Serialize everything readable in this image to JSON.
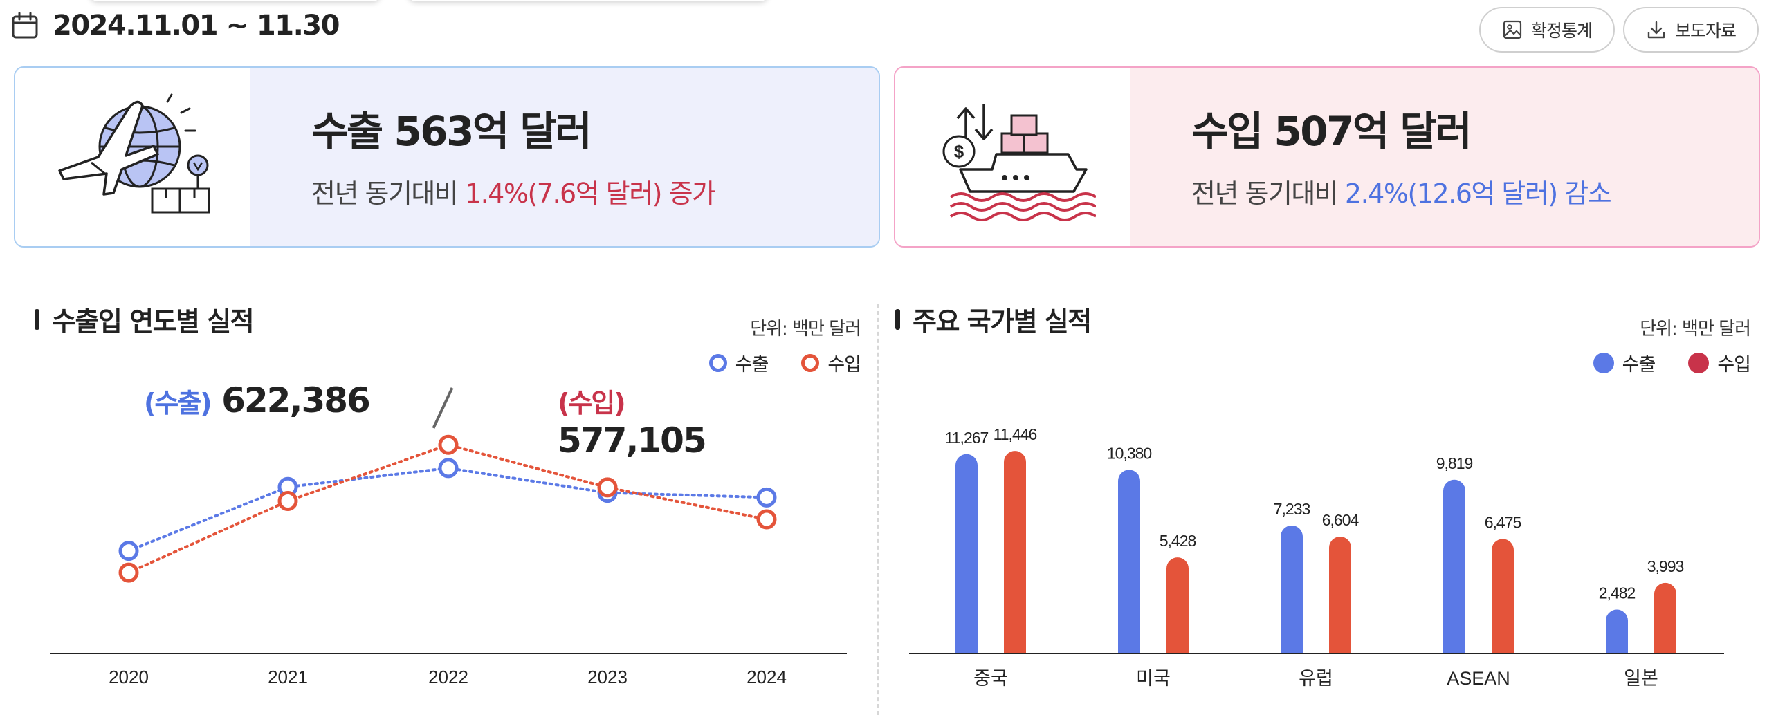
{
  "date_range": "2024.11.01 ~ 11.30",
  "buttons": {
    "confirmed_stats": "확정통계",
    "press_release": "보도자료"
  },
  "export_card": {
    "headline": "수출 563억 달러",
    "sub_prefix": "전년 동기대비 ",
    "sub_change": "1.4%(7.6억 달러) 증가"
  },
  "import_card": {
    "headline": "수입 507억 달러",
    "sub_prefix": "전년 동기대비 ",
    "sub_change": "2.4%(12.6억 달러) 감소"
  },
  "yearly_section": {
    "title": "수출입 연도별 실적",
    "unit": "단위: 백만 달러",
    "legend_export": "수출",
    "legend_import": "수입",
    "total_export_label": "(수출)",
    "total_export_value": "622,386",
    "total_import_label": "(수입)",
    "total_import_value": "577,105"
  },
  "country_section": {
    "title": "주요 국가별 실적",
    "unit": "단위: 백만 달러",
    "legend_export": "수출",
    "legend_import": "수입"
  },
  "colors": {
    "export": "#5b79e6",
    "import": "#e4543a",
    "inc_text": "#c8334a",
    "dec_text": "#4e72e0"
  },
  "chart_data": [
    {
      "type": "line",
      "title": "수출입 연도별 실적",
      "x": [
        "2020",
        "2021",
        "2022",
        "2023",
        "2024"
      ],
      "series": [
        {
          "name": "수출",
          "values": [
            512000,
            644000,
            683000,
            632000,
            622386
          ]
        },
        {
          "name": "수입",
          "values": [
            467000,
            615000,
            731000,
            643000,
            577105
          ]
        }
      ],
      "ylim": [
        300000,
        850000
      ],
      "grid": false,
      "legend": "top-right"
    },
    {
      "type": "bar",
      "title": "주요 국가별 실적",
      "categories": [
        "중국",
        "미국",
        "유럽",
        "ASEAN",
        "일본"
      ],
      "series": [
        {
          "name": "수출",
          "values": [
            11267,
            10380,
            7233,
            9819,
            2482
          ],
          "labels": [
            "11,267",
            "10,380",
            "7,233",
            "9,819",
            "2,482"
          ]
        },
        {
          "name": "수입",
          "values": [
            11446,
            5428,
            6604,
            6475,
            3993
          ],
          "labels": [
            "11,446",
            "5,428",
            "6,604",
            "6,475",
            "3,993"
          ]
        }
      ],
      "ylim": [
        0,
        12000
      ],
      "legend": "top-right"
    }
  ]
}
